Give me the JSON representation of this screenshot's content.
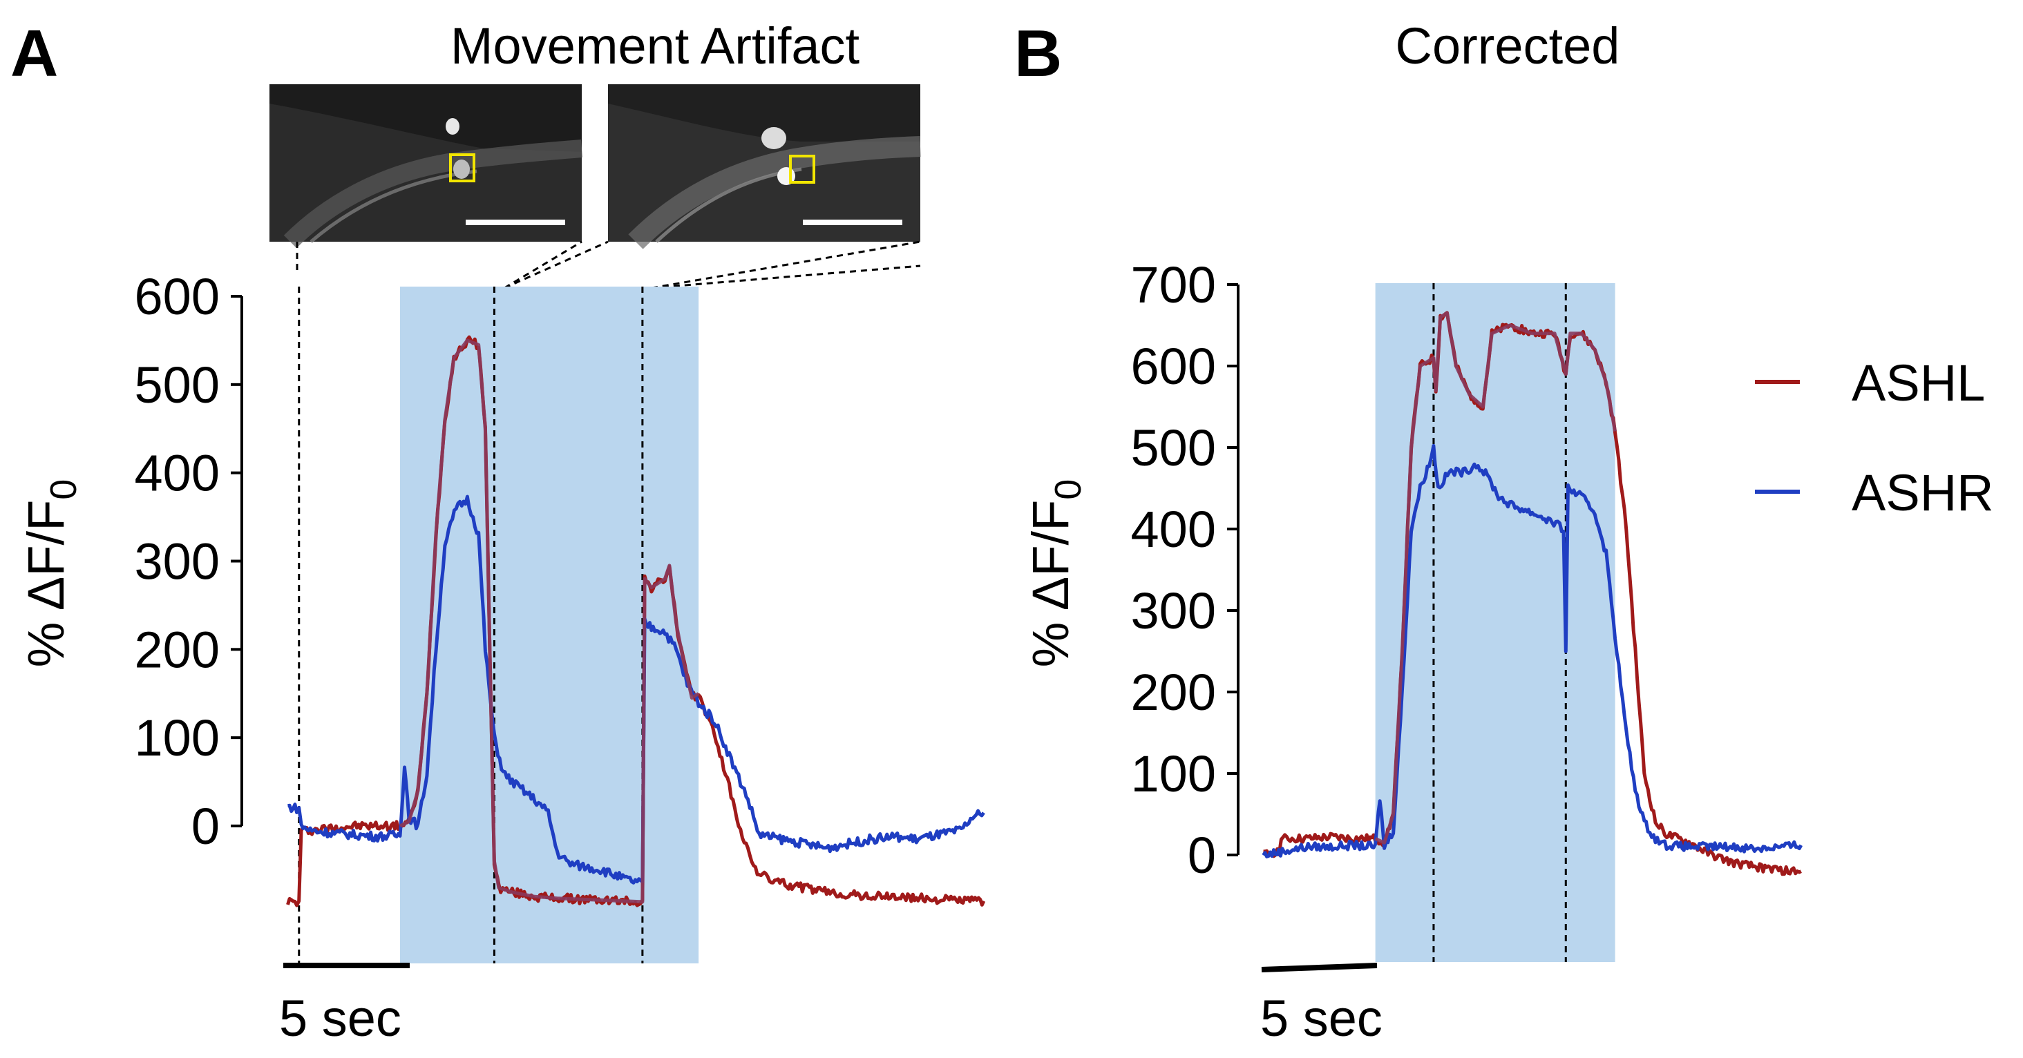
{
  "colors": {
    "ashl": "#a01a1a",
    "ashl_on_shade": "#8a3a5c",
    "ashr": "#1f3ec2",
    "shade": "#bad6ee",
    "micrograph_bg": "#2a2a2a",
    "roi_box": "#f2e600",
    "axis": "#000000"
  },
  "panel_a": {
    "letter": "A",
    "title": "Movement Artifact",
    "ylabel_prefix": "% ΔF/F",
    "ylabel_sub": "0",
    "scalebar_label": "5 sec",
    "micrograph_icon": "fluorescence-micrograph-icon"
  },
  "panel_b": {
    "letter": "B",
    "title": "Corrected",
    "ylabel_prefix": "% ΔF/F",
    "ylabel_sub": "0",
    "scalebar_label": "5 sec"
  },
  "legend": [
    {
      "name": "ASHL",
      "color": "#a01a1a"
    },
    {
      "name": "ASHR",
      "color": "#1f3ec2"
    }
  ],
  "chart_data": [
    {
      "type": "line",
      "title": "Movement Artifact",
      "ylabel": "% ΔF/F0",
      "xlabel": "",
      "x_units": "seconds",
      "xlim": [
        -0.2,
        31.5
      ],
      "ylim": [
        -150,
        600
      ],
      "yticks": [
        0,
        100,
        200,
        300,
        400,
        500,
        600
      ],
      "scale_bar_seconds": 5,
      "stimulus_window": [
        5.0,
        18.3
      ],
      "dashed_lines_x": [
        0.5,
        9.2,
        15.8
      ],
      "series": [
        {
          "name": "ASHL",
          "points": [
            [
              0,
              -85
            ],
            [
              0.4,
              -87
            ],
            [
              0.5,
              -87
            ],
            [
              0.6,
              -5
            ],
            [
              1.0,
              -5
            ],
            [
              2,
              -2
            ],
            [
              3,
              0
            ],
            [
              4,
              0
            ],
            [
              5.0,
              0
            ],
            [
              5.4,
              5
            ],
            [
              5.8,
              40
            ],
            [
              6.2,
              150
            ],
            [
              6.6,
              330
            ],
            [
              7.0,
              460
            ],
            [
              7.4,
              530
            ],
            [
              8.0,
              550
            ],
            [
              8.5,
              545
            ],
            [
              8.8,
              450
            ],
            [
              9.0,
              200
            ],
            [
              9.2,
              -40
            ],
            [
              9.4,
              -70
            ],
            [
              10,
              -75
            ],
            [
              11,
              -80
            ],
            [
              12,
              -82
            ],
            [
              13,
              -83
            ],
            [
              14,
              -84
            ],
            [
              15,
              -85
            ],
            [
              15.8,
              -86
            ],
            [
              15.9,
              280
            ],
            [
              16.2,
              270
            ],
            [
              16.8,
              280
            ],
            [
              17.0,
              295
            ],
            [
              17.3,
              230
            ],
            [
              17.6,
              190
            ],
            [
              18.0,
              145
            ],
            [
              18.3,
              150
            ],
            [
              18.6,
              130
            ],
            [
              19,
              105
            ],
            [
              19.5,
              60
            ],
            [
              20,
              10
            ],
            [
              20.5,
              -30
            ],
            [
              21,
              -55
            ],
            [
              22,
              -65
            ],
            [
              23,
              -70
            ],
            [
              24,
              -75
            ],
            [
              25,
              -78
            ],
            [
              26,
              -80
            ],
            [
              27,
              -80
            ],
            [
              28,
              -82
            ],
            [
              29,
              -83
            ],
            [
              30,
              -84
            ],
            [
              31,
              -85
            ]
          ]
        },
        {
          "name": "ASHR",
          "points": [
            [
              0,
              22
            ],
            [
              0.4,
              20
            ],
            [
              0.5,
              20
            ],
            [
              0.6,
              0
            ],
            [
              1.0,
              -5
            ],
            [
              2,
              -8
            ],
            [
              3,
              -10
            ],
            [
              4,
              -12
            ],
            [
              5.0,
              -10
            ],
            [
              5.2,
              70
            ],
            [
              5.4,
              10
            ],
            [
              5.8,
              0
            ],
            [
              6.2,
              60
            ],
            [
              6.6,
              200
            ],
            [
              7.0,
              320
            ],
            [
              7.5,
              360
            ],
            [
              8.0,
              370
            ],
            [
              8.5,
              330
            ],
            [
              8.8,
              200
            ],
            [
              9.2,
              100
            ],
            [
              9.6,
              60
            ],
            [
              10,
              50
            ],
            [
              11,
              30
            ],
            [
              11.6,
              15
            ],
            [
              12,
              -30
            ],
            [
              12.5,
              -42
            ],
            [
              13,
              -45
            ],
            [
              14,
              -50
            ],
            [
              15,
              -60
            ],
            [
              15.8,
              -65
            ],
            [
              15.9,
              230
            ],
            [
              16.2,
              225
            ],
            [
              16.8,
              220
            ],
            [
              17.3,
              200
            ],
            [
              17.8,
              160
            ],
            [
              18.3,
              140
            ],
            [
              18.6,
              130
            ],
            [
              19,
              120
            ],
            [
              19.5,
              90
            ],
            [
              20,
              60
            ],
            [
              20.5,
              30
            ],
            [
              21,
              -10
            ],
            [
              22,
              -15
            ],
            [
              23,
              -20
            ],
            [
              24,
              -25
            ],
            [
              25,
              -20
            ],
            [
              26,
              -15
            ],
            [
              27,
              -12
            ],
            [
              28,
              -15
            ],
            [
              29,
              -10
            ],
            [
              30,
              -5
            ],
            [
              30.5,
              10
            ],
            [
              31,
              15
            ]
          ]
        }
      ]
    },
    {
      "type": "line",
      "title": "Corrected",
      "ylabel": "% ΔF/F0",
      "xlabel": "",
      "x_units": "seconds",
      "xlim": [
        -0.2,
        31.5
      ],
      "ylim": [
        -130,
        700
      ],
      "yticks": [
        0,
        100,
        200,
        300,
        400,
        500,
        600,
        700
      ],
      "scale_bar_seconds": 5,
      "stimulus_window": [
        5.0,
        15.7
      ],
      "dashed_lines_x": [
        7.6,
        13.5
      ],
      "series": [
        {
          "name": "ASHL",
          "points": [
            [
              0,
              0
            ],
            [
              0.7,
              5
            ],
            [
              0.8,
              20
            ],
            [
              2,
              20
            ],
            [
              3,
              22
            ],
            [
              4,
              20
            ],
            [
              5.0,
              20
            ],
            [
              5.4,
              15
            ],
            [
              5.8,
              50
            ],
            [
              6.2,
              250
            ],
            [
              6.6,
              500
            ],
            [
              7.0,
              600
            ],
            [
              7.6,
              610
            ],
            [
              7.7,
              570
            ],
            [
              7.9,
              660
            ],
            [
              8.2,
              665
            ],
            [
              8.6,
              600
            ],
            [
              9.2,
              565
            ],
            [
              9.8,
              550
            ],
            [
              10.2,
              640
            ],
            [
              11,
              650
            ],
            [
              12,
              640
            ],
            [
              13,
              640
            ],
            [
              13.5,
              590
            ],
            [
              13.7,
              640
            ],
            [
              14.2,
              640
            ],
            [
              14.8,
              620
            ],
            [
              15.3,
              580
            ],
            [
              15.7,
              520
            ],
            [
              16.2,
              400
            ],
            [
              16.6,
              250
            ],
            [
              17,
              100
            ],
            [
              17.5,
              40
            ],
            [
              18,
              25
            ],
            [
              19,
              15
            ],
            [
              20,
              0
            ],
            [
              21,
              -10
            ],
            [
              22,
              -15
            ],
            [
              23,
              -18
            ],
            [
              23.5,
              -20
            ],
            [
              24,
              -20
            ]
          ]
        },
        {
          "name": "ASHR",
          "points": [
            [
              0,
              0
            ],
            [
              1,
              5
            ],
            [
              2,
              10
            ],
            [
              3,
              10
            ],
            [
              4,
              12
            ],
            [
              5.0,
              10
            ],
            [
              5.2,
              70
            ],
            [
              5.4,
              10
            ],
            [
              5.8,
              30
            ],
            [
              6.2,
              200
            ],
            [
              6.6,
              400
            ],
            [
              7.0,
              450
            ],
            [
              7.4,
              480
            ],
            [
              7.6,
              500
            ],
            [
              7.8,
              450
            ],
            [
              8.3,
              470
            ],
            [
              9,
              470
            ],
            [
              9.5,
              480
            ],
            [
              10,
              465
            ],
            [
              10.5,
              440
            ],
            [
              11,
              430
            ],
            [
              12,
              420
            ],
            [
              12.8,
              410
            ],
            [
              13.4,
              400
            ],
            [
              13.5,
              250
            ],
            [
              13.6,
              450
            ],
            [
              14.2,
              440
            ],
            [
              14.8,
              420
            ],
            [
              15.3,
              370
            ],
            [
              15.7,
              270
            ],
            [
              16.2,
              150
            ],
            [
              16.6,
              80
            ],
            [
              17,
              40
            ],
            [
              17.5,
              20
            ],
            [
              18,
              12
            ],
            [
              19,
              10
            ],
            [
              20,
              10
            ],
            [
              21,
              10
            ],
            [
              22,
              8
            ],
            [
              23,
              10
            ],
            [
              24,
              12
            ]
          ]
        }
      ]
    }
  ]
}
